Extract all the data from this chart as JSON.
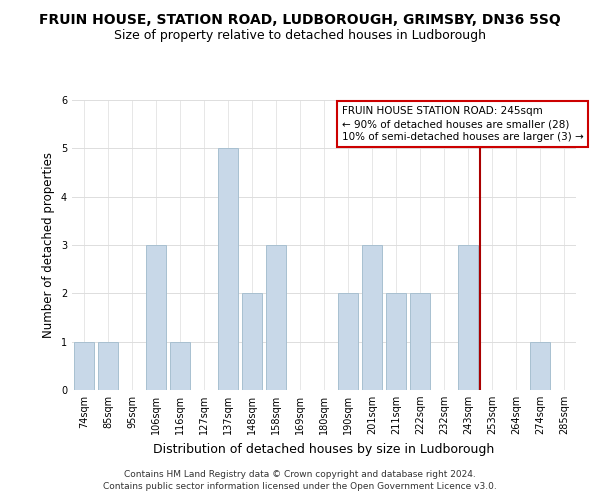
{
  "title": "FRUIN HOUSE, STATION ROAD, LUDBOROUGH, GRIMSBY, DN36 5SQ",
  "subtitle": "Size of property relative to detached houses in Ludborough",
  "xlabel": "Distribution of detached houses by size in Ludborough",
  "ylabel": "Number of detached properties",
  "categories": [
    "74sqm",
    "85sqm",
    "95sqm",
    "106sqm",
    "116sqm",
    "127sqm",
    "137sqm",
    "148sqm",
    "158sqm",
    "169sqm",
    "180sqm",
    "190sqm",
    "201sqm",
    "211sqm",
    "222sqm",
    "232sqm",
    "243sqm",
    "253sqm",
    "264sqm",
    "274sqm",
    "285sqm"
  ],
  "values": [
    1,
    1,
    0,
    3,
    1,
    0,
    5,
    2,
    3,
    0,
    0,
    2,
    3,
    2,
    2,
    0,
    3,
    0,
    0,
    1,
    0
  ],
  "bar_color": "#c8d8e8",
  "bar_edge_color": "#a8c0d0",
  "grid_color": "#dddddd",
  "vline_index": 16,
  "vline_color": "#aa0000",
  "annotation_text": "FRUIN HOUSE STATION ROAD: 245sqm\n← 90% of detached houses are smaller (28)\n10% of semi-detached houses are larger (3) →",
  "annotation_box_facecolor": "#ffffff",
  "annotation_box_edgecolor": "#cc0000",
  "ylim": [
    0,
    6
  ],
  "yticks": [
    0,
    1,
    2,
    3,
    4,
    5,
    6
  ],
  "footer1": "Contains HM Land Registry data © Crown copyright and database right 2024.",
  "footer2": "Contains public sector information licensed under the Open Government Licence v3.0.",
  "title_fontsize": 10,
  "subtitle_fontsize": 9,
  "xlabel_fontsize": 9,
  "ylabel_fontsize": 8.5,
  "tick_fontsize": 7,
  "annot_fontsize": 7.5,
  "footer_fontsize": 6.5
}
